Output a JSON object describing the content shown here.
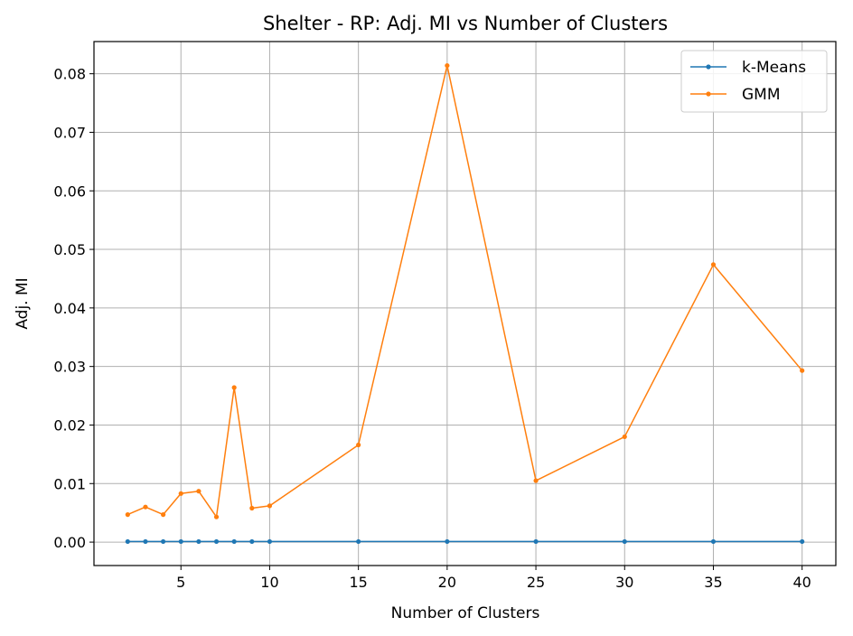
{
  "chart_data": {
    "type": "line",
    "title": "Shelter - RP: Adj. MI vs Number of Clusters",
    "xlabel": "Number of Clusters",
    "ylabel": "Adj. MI",
    "x": [
      2,
      3,
      4,
      5,
      6,
      7,
      8,
      9,
      10,
      15,
      20,
      25,
      30,
      35,
      40
    ],
    "series": [
      {
        "name": "k-Means",
        "color": "#1f77b4",
        "values": [
          0.0001,
          0.0001,
          0.0001,
          0.0001,
          0.0001,
          0.0001,
          0.0001,
          0.0001,
          0.0001,
          0.0001,
          0.0001,
          0.0001,
          0.0001,
          0.0001,
          0.0001
        ]
      },
      {
        "name": "GMM",
        "color": "#ff7f0e",
        "values": [
          0.0047,
          0.006,
          0.0047,
          0.0083,
          0.0087,
          0.0043,
          0.0264,
          0.0058,
          0.0062,
          0.0166,
          0.0814,
          0.0105,
          0.018,
          0.0474,
          0.0293
        ]
      }
    ],
    "xlim": [
      0.1,
      41.9
    ],
    "ylim": [
      -0.004,
      0.0855
    ],
    "xticks": [
      5,
      10,
      15,
      20,
      25,
      30,
      35,
      40
    ],
    "xtick_labels": [
      "5",
      "10",
      "15",
      "20",
      "25",
      "30",
      "35",
      "40"
    ],
    "yticks": [
      0,
      0.01,
      0.02,
      0.03,
      0.04,
      0.05,
      0.06,
      0.07,
      0.08
    ],
    "ytick_labels": [
      "0.00",
      "0.01",
      "0.02",
      "0.03",
      "0.04",
      "0.05",
      "0.06",
      "0.07",
      "0.08"
    ],
    "grid": true,
    "legend": "top-right"
  }
}
